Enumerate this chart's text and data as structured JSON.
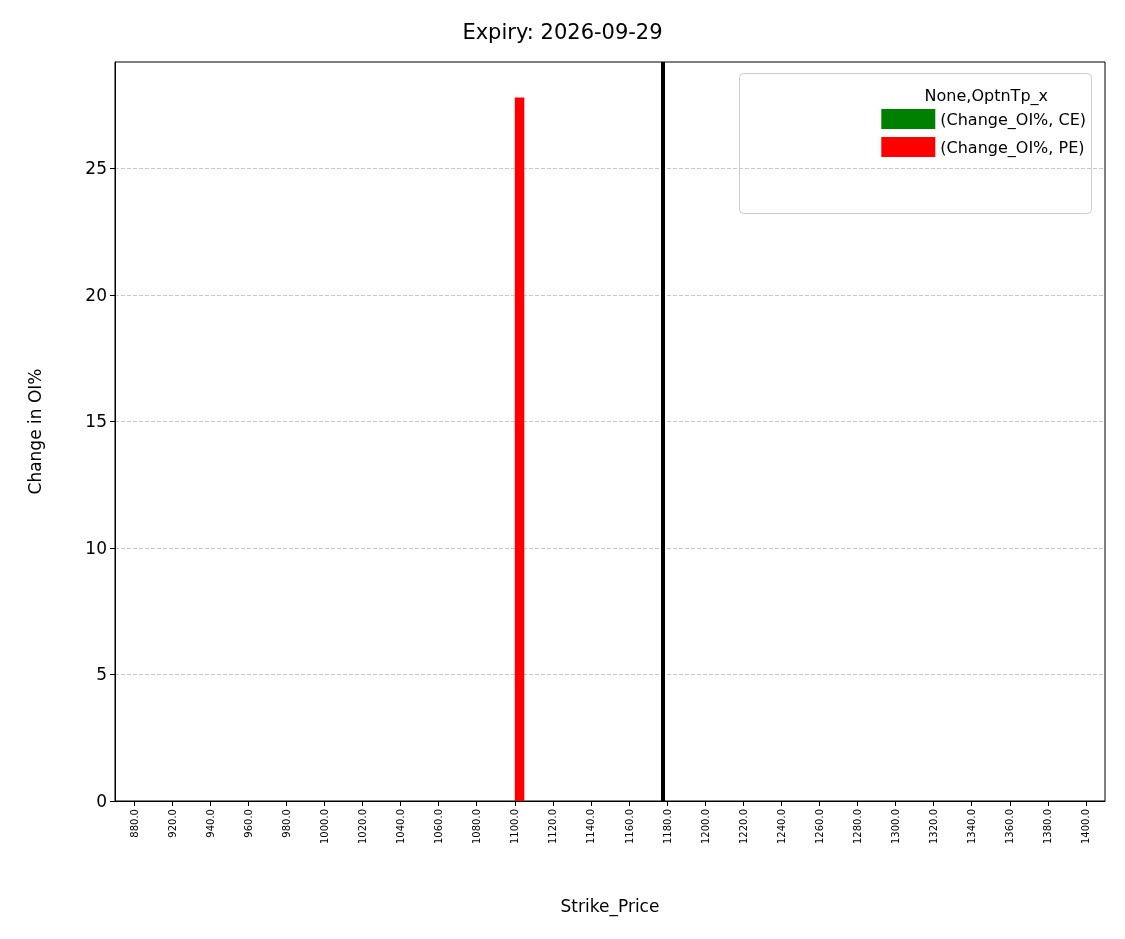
{
  "chart_data": {
    "type": "bar",
    "title": "Expiry: 2026-09-29",
    "xlabel": "Strike_Price",
    "ylabel": "Change in OI%",
    "legend_title": "None,OptnTp_x",
    "categories": [
      "880.0",
      "920.0",
      "940.0",
      "960.0",
      "980.0",
      "1000.0",
      "1020.0",
      "1040.0",
      "1060.0",
      "1080.0",
      "1100.0",
      "1120.0",
      "1140.0",
      "1160.0",
      "1180.0",
      "1200.0",
      "1220.0",
      "1240.0",
      "1260.0",
      "1280.0",
      "1300.0",
      "1320.0",
      "1340.0",
      "1360.0",
      "1380.0",
      "1400.0"
    ],
    "series": [
      {
        "name": "(Change_OI%, CE)",
        "color": "#008000",
        "values": [
          0,
          0,
          0,
          0,
          0,
          0,
          0,
          0,
          0,
          0,
          0,
          0,
          0,
          0,
          0,
          0,
          0,
          0,
          0,
          0,
          0,
          0,
          0,
          0,
          0,
          0
        ]
      },
      {
        "name": "(Change_OI%, PE)",
        "color": "#ff0000",
        "values": [
          0,
          0,
          0,
          0,
          0,
          0,
          0,
          0,
          0,
          0,
          27.8,
          0,
          0,
          0,
          0,
          0,
          0,
          0,
          0,
          0,
          0,
          0,
          0,
          0,
          0,
          0
        ]
      }
    ],
    "ylim": [
      0,
      29.2
    ],
    "yticks": [
      0,
      5,
      10,
      15,
      20,
      25
    ],
    "grid": "y",
    "legend": "top right",
    "ref_lines": [
      {
        "axis": "x",
        "value": "1180.0",
        "color": "#000000",
        "line_style": "solid"
      }
    ]
  }
}
